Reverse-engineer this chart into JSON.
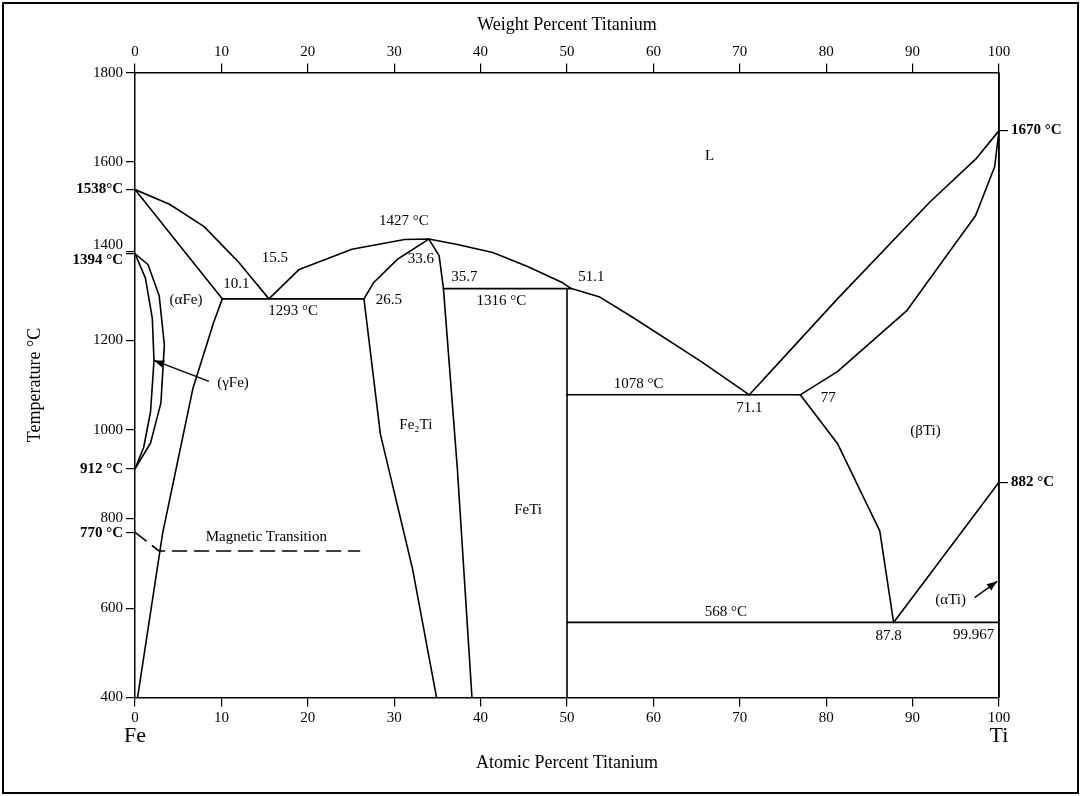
{
  "chart_data": {
    "type": "line",
    "xlabel": "Atomic Percent Titanium",
    "x2label": "Weight Percent Titanium",
    "ylabel": "Temperature °C",
    "xlim": [
      0,
      100
    ],
    "xticks": [
      0,
      10,
      20,
      30,
      40,
      50,
      60,
      70,
      80,
      90,
      100
    ],
    "x2lim": [
      0,
      100
    ],
    "x2ticks": [
      0,
      10,
      20,
      30,
      40,
      50,
      60,
      70,
      80,
      90,
      100
    ],
    "ylim": [
      400,
      1800
    ],
    "yticks": [
      400,
      600,
      800,
      1000,
      1200,
      1400,
      1600,
      1800,
      {
        "value": 1538,
        "label": "1538°C"
      },
      {
        "value": 1394,
        "label": "1394 °C"
      },
      {
        "value": 912,
        "label": "912 °C"
      },
      {
        "value": 770,
        "label": "770 °C"
      }
    ],
    "y2lim": [
      400,
      1800
    ],
    "y2ticks": [
      {
        "value": 1670,
        "label": "1670 °C"
      },
      {
        "value": 882,
        "label": "882 °C"
      }
    ],
    "grid": false,
    "legend": false,
    "marker": "none",
    "line_style": "solid",
    "series": [
      {
        "color": "#000000",
        "x": [
          0,
          4,
          8,
          12,
          15.5
        ],
        "values": [
          1538,
          1505,
          1455,
          1375,
          1293
        ]
      },
      {
        "color": "#000000",
        "x": [
          0,
          10.1
        ],
        "values": [
          1538,
          1293
        ]
      },
      {
        "color": "#000000",
        "x": [
          10.1,
          9.1,
          6.7,
          3.2,
          0.3
        ],
        "values": [
          1293,
          1240,
          1092,
          768,
          400
        ]
      },
      {
        "color": "#000000",
        "x": [
          0,
          1.5,
          2.8,
          3.4,
          3.0,
          1.8,
          0
        ],
        "values": [
          1394,
          1370,
          1300,
          1190,
          1060,
          970,
          912
        ]
      },
      {
        "color": "#000000",
        "x": [
          0,
          1.2,
          2.0,
          2.2,
          1.8,
          1.0,
          0
        ],
        "values": [
          1394,
          1340,
          1250,
          1155,
          1040,
          960,
          912
        ]
      },
      {
        "color": "#000000",
        "x": [
          0,
          2.8,
          26
        ],
        "values": [
          770,
          728,
          728
        ],
        "line_style": "dashed"
      },
      {
        "color": "#000000",
        "x": [
          10.1,
          26.5
        ],
        "values": [
          1293,
          1293
        ]
      },
      {
        "color": "#000000",
        "x": [
          15.5,
          19,
          25.1,
          31.2,
          34,
          37.3,
          41.4,
          45.5,
          49.5,
          50.5,
          53.8,
          57.5,
          65.5,
          71.1
        ],
        "values": [
          1293,
          1359,
          1404,
          1426,
          1427,
          1415,
          1397,
          1365,
          1329,
          1316,
          1297,
          1253,
          1153,
          1078
        ]
      },
      {
        "color": "#000000",
        "x": [
          26.5,
          27.6,
          30.4,
          34
        ],
        "values": [
          1293,
          1329,
          1382,
          1427
        ]
      },
      {
        "color": "#000000",
        "x": [
          26.5,
          28.4,
          32.1,
          34.9
        ],
        "values": [
          1293,
          990,
          690,
          400
        ]
      },
      {
        "color": "#000000",
        "x": [
          34,
          35.2,
          35.7,
          37.3,
          39
        ],
        "values": [
          1427,
          1390,
          1316,
          915,
          400
        ]
      },
      {
        "color": "#000000",
        "x": [
          35.7,
          50.5
        ],
        "values": [
          1316,
          1316
        ]
      },
      {
        "color": "#000000",
        "x": [
          50,
          50
        ],
        "values": [
          400,
          1316
        ]
      },
      {
        "color": "#000000",
        "x": [
          50,
          77
        ],
        "values": [
          1078,
          1078
        ]
      },
      {
        "color": "#000000",
        "x": [
          71.1,
          81.3,
          92,
          97.3,
          100
        ],
        "values": [
          1078,
          1293,
          1510,
          1606,
          1670
        ]
      },
      {
        "color": "#000000",
        "x": [
          77,
          81.3,
          89.3,
          97.3,
          99.5,
          100
        ],
        "values": [
          1078,
          1130,
          1266,
          1480,
          1589,
          1670
        ]
      },
      {
        "color": "#000000",
        "x": [
          77,
          81.3,
          86.2,
          87.8
        ],
        "values": [
          1078,
          969,
          773,
          568
        ]
      },
      {
        "color": "#000000",
        "x": [
          50,
          100
        ],
        "values": [
          568,
          568
        ]
      },
      {
        "color": "#000000",
        "x": [
          87.8,
          100
        ],
        "values": [
          568,
          882
        ]
      }
    ],
    "annotations": [
      "L",
      "(αFe)",
      "Fe₂Ti",
      "FeTi",
      "(βTi)",
      "Fe",
      "Ti",
      "(αTi)",
      {
        "text": "(γFe)",
        "x": 2.2,
        "y": 1155
      },
      {
        "text": "1427 °C",
        "x": 34,
        "y": 1427
      },
      {
        "text": "15.5",
        "x": 15.5,
        "y": 1293
      },
      {
        "text": "10.1",
        "x": 10.1,
        "y": 1293
      },
      {
        "text": "1293 °C",
        "x": 18.3,
        "y": 1293
      },
      {
        "text": "26.5",
        "x": 26.5,
        "y": 1293
      },
      {
        "text": "33.6",
        "x": 34,
        "y": 1427
      },
      {
        "text": "35.7",
        "x": 35.7,
        "y": 1316
      },
      {
        "text": "1316 °C",
        "x": 42.4,
        "y": 1316
      },
      {
        "text": "51.1",
        "x": 50.5,
        "y": 1316
      },
      {
        "text": "Magnetic Transition",
        "x": 15.2,
        "y": 728
      },
      {
        "text": "1078 °C",
        "x": 58.3,
        "y": 1078
      },
      {
        "text": "71.1",
        "x": 71.1,
        "y": 1078
      },
      {
        "text": "77",
        "x": 77,
        "y": 1078
      },
      {
        "text": "568 °C",
        "x": 68.4,
        "y": 568
      },
      {
        "text": "87.8",
        "x": 87.8,
        "y": 568
      },
      {
        "text": "99.967",
        "x": 99.967,
        "y": 568
      }
    ]
  }
}
